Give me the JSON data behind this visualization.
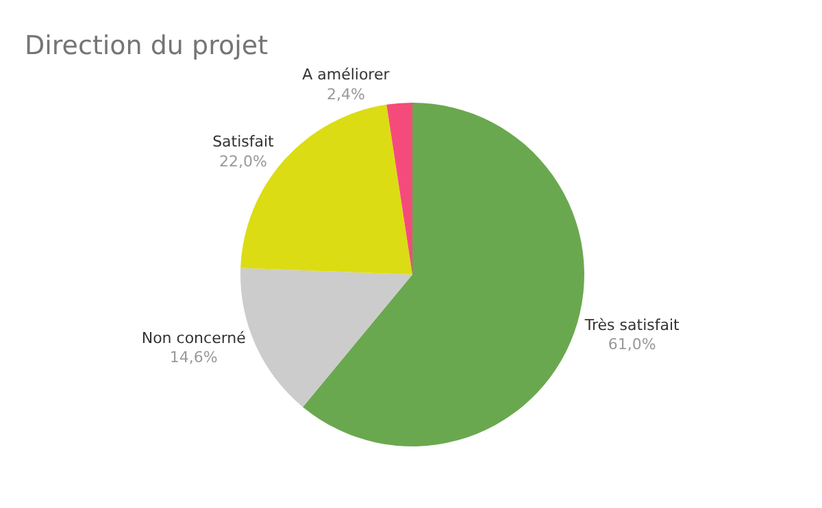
{
  "chart_data": {
    "type": "pie",
    "title": "Direction du projet",
    "categories": [
      "Très satisfait",
      "Non concerné",
      "Satisfait",
      "A améliorer"
    ],
    "values": [
      61.0,
      14.6,
      22.0,
      2.4
    ],
    "value_labels": [
      "61,0%",
      "14,6%",
      "22,0%",
      "2,4%"
    ],
    "colors": [
      "#6aa84f",
      "#cccccc",
      "#dcdc14",
      "#f54b7a"
    ],
    "legend": false
  }
}
